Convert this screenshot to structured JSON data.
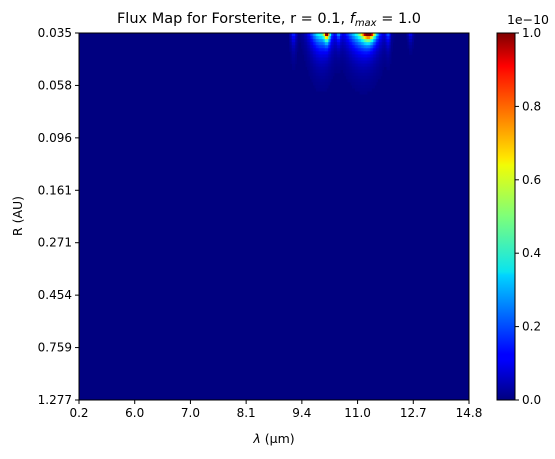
{
  "chart_data": {
    "type": "heatmap",
    "title": "Flux Map for Forsterite, r = 0.1, ",
    "title_fmax_symbol": "f",
    "title_fmax_subscript": "max",
    "title_fmax_value": " = 1.0",
    "xlabel_symbol": "λ",
    "xlabel_unit": " (μm)",
    "ylabel": "R (AU)",
    "x_ticks": [
      "0.2",
      "6.0",
      "7.0",
      "8.1",
      "9.4",
      "11.0",
      "12.7",
      "14.8"
    ],
    "y_ticks": [
      "0.035",
      "0.058",
      "0.096",
      "0.161",
      "0.271",
      "0.454",
      "0.759",
      "1.277"
    ],
    "colorbar": {
      "ticks": [
        "0.0",
        "0.2",
        "0.4",
        "0.6",
        "0.8",
        "1.0"
      ],
      "tick_values": [
        0.0,
        0.2,
        0.4,
        0.6,
        0.8,
        1.0
      ],
      "scale_label": "1e−10",
      "colormap": "jet",
      "range": [
        0.0,
        1.0
      ]
    },
    "background_level": 0.0,
    "features": [
      {
        "x_tick_pos": 3.85,
        "width": 0.08,
        "depth": 0.22,
        "peak": 0.18
      },
      {
        "x_tick_pos": 4.35,
        "width": 0.3,
        "depth": 0.28,
        "peak": 0.45
      },
      {
        "x_tick_pos": 4.45,
        "width": 0.07,
        "depth": 0.1,
        "peak": 1.0
      },
      {
        "x_tick_pos": 4.66,
        "width": 0.06,
        "depth": 0.16,
        "peak": 0.22
      },
      {
        "x_tick_pos": 5.1,
        "width": 0.42,
        "depth": 0.28,
        "peak": 0.5
      },
      {
        "x_tick_pos": 5.2,
        "width": 0.16,
        "depth": 0.1,
        "peak": 1.0
      },
      {
        "x_tick_pos": 5.55,
        "width": 0.06,
        "depth": 0.2,
        "peak": 0.2
      },
      {
        "x_tick_pos": 5.95,
        "width": 0.07,
        "depth": 0.14,
        "peak": 0.14
      }
    ],
    "grid": false
  }
}
